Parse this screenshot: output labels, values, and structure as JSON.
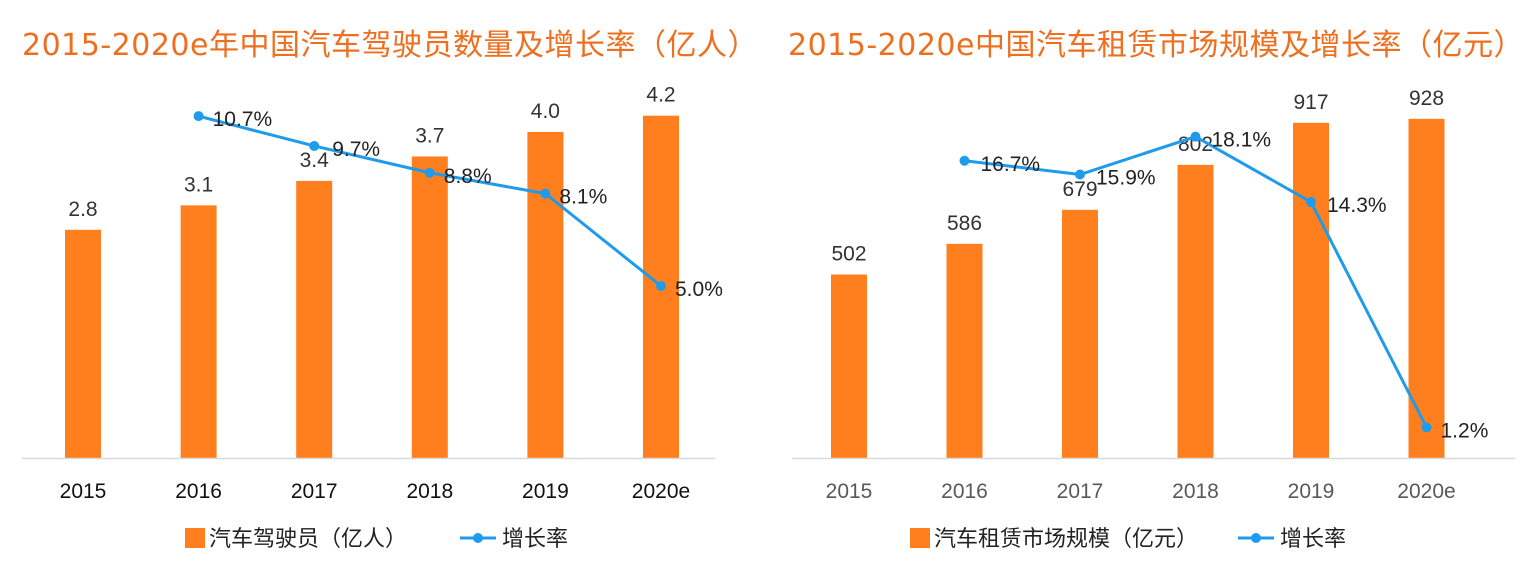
{
  "colors": {
    "bar": "#FF7F1E",
    "line": "#1E9BEA",
    "title": "#ED6F1F",
    "axis": "#D9D9D9"
  },
  "chart_data": [
    {
      "type": "bar",
      "title": "2015-2020e年中国汽车驾驶员数量及增长率（亿人）",
      "categories": [
        "2015",
        "2016",
        "2017",
        "2018",
        "2019",
        "2020e"
      ],
      "series": [
        {
          "name": "汽车驾驶员（亿人）",
          "type": "bar",
          "values": [
            2.8,
            3.1,
            3.4,
            3.7,
            4.0,
            4.2
          ],
          "labels": [
            "2.8",
            "3.1",
            "3.4",
            "3.7",
            "4.0",
            "4.2"
          ]
        },
        {
          "name": "增长率",
          "type": "line",
          "x": [
            "2016",
            "2017",
            "2018",
            "2019",
            "2020e"
          ],
          "values": [
            10.7,
            9.7,
            8.8,
            8.1,
            5.0
          ],
          "labels": [
            "10.7%",
            "9.7%",
            "8.8%",
            "8.1%",
            "5.0%"
          ]
        }
      ],
      "legend_position": "bottom",
      "grid": false
    },
    {
      "type": "bar",
      "title": "2015-2020e中国汽车租赁市场规模及增长率（亿元）",
      "categories": [
        "2015",
        "2016",
        "2017",
        "2018",
        "2019",
        "2020e"
      ],
      "series": [
        {
          "name": "汽车租赁市场规模（亿元）",
          "type": "bar",
          "values": [
            502,
            586,
            679,
            802,
            917,
            928
          ],
          "labels": [
            "502",
            "586",
            "679",
            "802",
            "917",
            "928"
          ]
        },
        {
          "name": "增长率",
          "type": "line",
          "x": [
            "2016",
            "2017",
            "2018",
            "2019",
            "2020e"
          ],
          "values": [
            16.7,
            15.9,
            18.1,
            14.3,
            1.2
          ],
          "labels": [
            "16.7%",
            "15.9%",
            "18.1%",
            "14.3%",
            "1.2%"
          ]
        }
      ],
      "legend_position": "bottom",
      "grid": false
    }
  ]
}
